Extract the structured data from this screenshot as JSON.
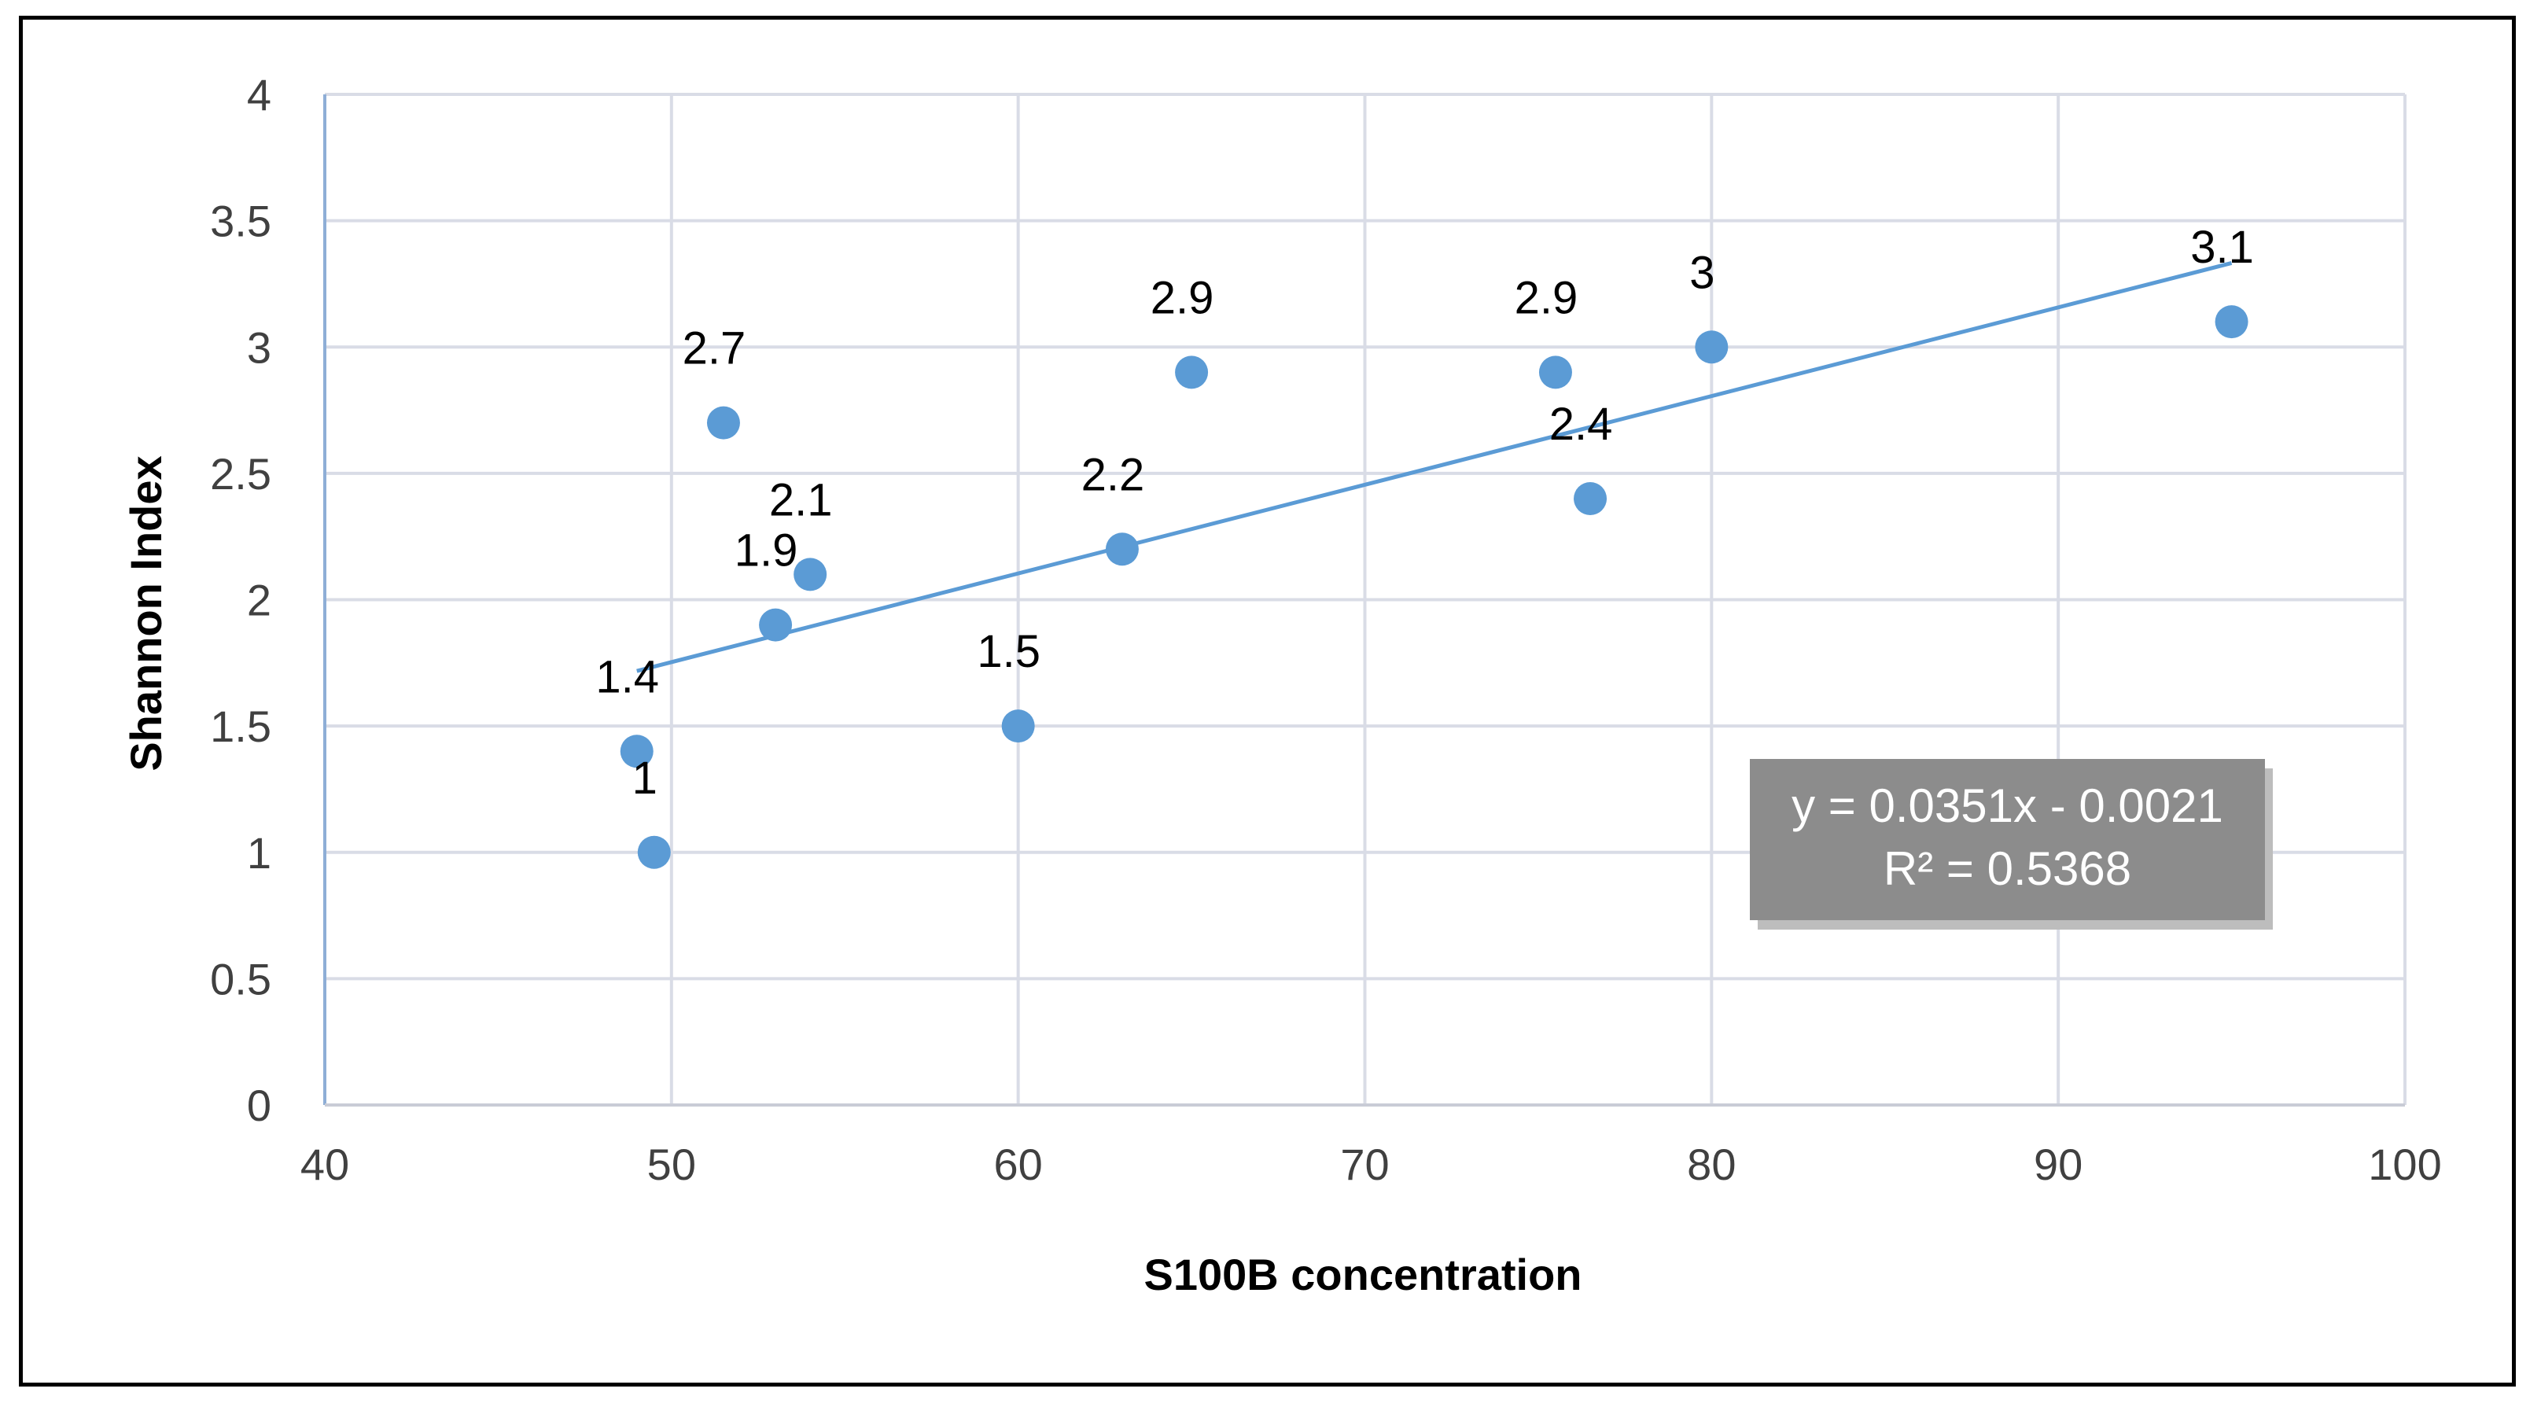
{
  "chart_data": {
    "type": "scatter",
    "title": "",
    "xlabel": "S100B concentration",
    "ylabel": "Shannon Index",
    "xlim": [
      40,
      100
    ],
    "ylim": [
      0,
      4
    ],
    "x_ticks": [
      "40",
      "50",
      "60",
      "70",
      "80",
      "90",
      "100"
    ],
    "y_ticks": [
      "0",
      "0.5",
      "1",
      "1.5",
      "2",
      "2.5",
      "3",
      "3.5",
      "4"
    ],
    "grid": true,
    "marker_color": "#5b9bd5",
    "trendline_color": "#5b9bd5",
    "points": [
      {
        "x": 49.0,
        "y": 1.4,
        "label": "1.4"
      },
      {
        "x": 49.5,
        "y": 1.0,
        "label": "1"
      },
      {
        "x": 51.5,
        "y": 2.7,
        "label": "2.7"
      },
      {
        "x": 53.0,
        "y": 1.9,
        "label": "1.9"
      },
      {
        "x": 54.0,
        "y": 2.1,
        "label": "2.1"
      },
      {
        "x": 60.0,
        "y": 1.5,
        "label": "1.5"
      },
      {
        "x": 63.0,
        "y": 2.2,
        "label": "2.2"
      },
      {
        "x": 65.0,
        "y": 2.9,
        "label": "2.9"
      },
      {
        "x": 75.5,
        "y": 2.9,
        "label": "2.9"
      },
      {
        "x": 76.5,
        "y": 2.4,
        "label": "2.4"
      },
      {
        "x": 80.0,
        "y": 3.0,
        "label": "3"
      },
      {
        "x": 95.0,
        "y": 3.1,
        "label": "3.1"
      }
    ],
    "trendline": {
      "type": "linear",
      "slope": 0.0351,
      "intercept": -0.0021,
      "x_range": [
        49,
        95
      ],
      "equation_text": "y = 0.0351x - 0.0021",
      "r2_text": "R² = 0.5368"
    }
  }
}
